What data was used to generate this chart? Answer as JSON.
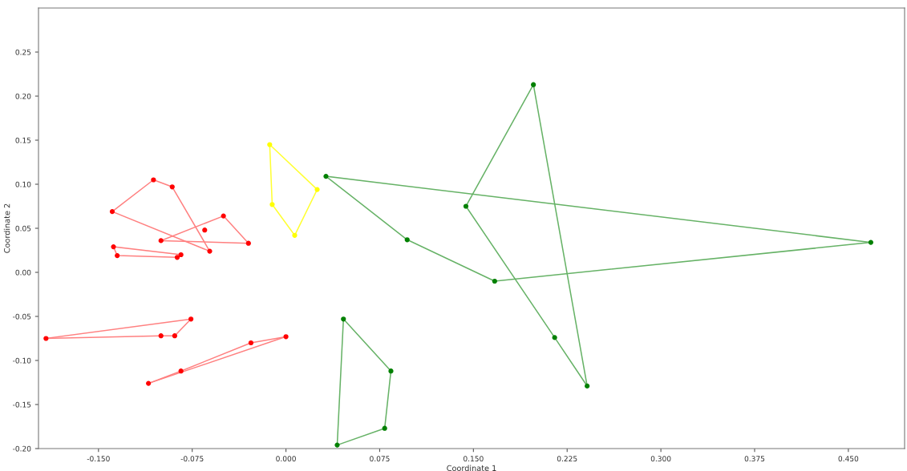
{
  "chart_data": {
    "type": "line",
    "xlabel": "Coordinate 1",
    "ylabel": "Coordinate 2",
    "line_style": "solid",
    "grid": false,
    "xlim": [
      -0.198,
      0.495
    ],
    "ylim": [
      -0.2,
      0.3
    ],
    "xticks": [
      {
        "value": -0.15,
        "label": "-0.150"
      },
      {
        "value": -0.075,
        "label": "-0.075"
      },
      {
        "value": 0,
        "label": "0.000"
      },
      {
        "value": 0.075,
        "label": "0.075"
      },
      {
        "value": 0.15,
        "label": "0.150"
      },
      {
        "value": 0.225,
        "label": "0.225"
      },
      {
        "value": 0.3,
        "label": "0.300"
      },
      {
        "value": 0.375,
        "label": "0.375"
      },
      {
        "value": 0.45,
        "label": "0.450"
      }
    ],
    "yticks": [
      {
        "value": -0.2,
        "label": "-0.20"
      },
      {
        "value": -0.15,
        "label": "-0.15"
      },
      {
        "value": -0.1,
        "label": "-0.10"
      },
      {
        "value": -0.05,
        "label": "-0.05"
      },
      {
        "value": 0,
        "label": "0.00"
      },
      {
        "value": 0.05,
        "label": "0.05"
      },
      {
        "value": 0.1,
        "label": "0.10"
      },
      {
        "value": 0.15,
        "label": "0.15"
      },
      {
        "value": 0.2,
        "label": "0.20"
      },
      {
        "value": 0.25,
        "label": "0.25"
      }
    ],
    "series": [
      {
        "color": "#ff8080",
        "x": [
          -0.139,
          -0.106,
          -0.091,
          -0.061
        ],
        "values": [
          0.069,
          0.105,
          0.097,
          0.024
        ]
      },
      {
        "color": "#ff8080",
        "x": [
          -0.139,
          -0.061
        ],
        "values": [
          0.069,
          0.024
        ]
      },
      {
        "color": "#ff8080",
        "x": [
          -0.1,
          -0.05,
          -0.03
        ],
        "values": [
          0.036,
          0.064,
          0.033
        ]
      },
      {
        "color": "#ff8080",
        "x": [
          -0.1,
          -0.03
        ],
        "values": [
          0.036,
          0.033
        ]
      },
      {
        "color": "#ff8080",
        "x": [
          -0.138,
          -0.084
        ],
        "values": [
          0.029,
          0.02
        ]
      },
      {
        "color": "#ff8080",
        "x": [
          -0.138,
          -0.135,
          -0.087,
          -0.084
        ],
        "values": [
          0.029,
          0.019,
          0.017,
          0.02
        ]
      },
      {
        "color": "#ff8080",
        "x": [
          -0.192,
          -0.076
        ],
        "values": [
          -0.075,
          -0.053
        ]
      },
      {
        "color": "#ff8080",
        "x": [
          -0.192,
          -0.1,
          -0.089,
          -0.076
        ],
        "values": [
          -0.075,
          -0.072,
          -0.072,
          -0.053
        ]
      },
      {
        "color": "#ff8080",
        "x": [
          -0.11,
          -0.084,
          -0.028,
          0.0
        ],
        "values": [
          -0.126,
          -0.112,
          -0.08,
          -0.073
        ]
      },
      {
        "color": "#ff8080",
        "x": [
          -0.11,
          0.0
        ],
        "values": [
          -0.126,
          -0.073
        ]
      },
      {
        "color": "#ffff33",
        "x": [
          -0.013,
          0.025
        ],
        "values": [
          0.145,
          0.094
        ]
      },
      {
        "color": "#ffff33",
        "x": [
          -0.013,
          -0.011,
          0.007,
          0.025
        ],
        "values": [
          0.145,
          0.077,
          0.042,
          0.094
        ]
      },
      {
        "color": "#66b266",
        "x": [
          0.041,
          0.046,
          0.084
        ],
        "values": [
          -0.196,
          -0.053,
          -0.112
        ]
      },
      {
        "color": "#66b266",
        "x": [
          0.041,
          0.079,
          0.084
        ],
        "values": [
          -0.196,
          -0.177,
          -0.112
        ]
      },
      {
        "color": "#66b266",
        "x": [
          0.032,
          0.097,
          0.167,
          0.468
        ],
        "values": [
          0.109,
          0.037,
          -0.01,
          0.034
        ]
      },
      {
        "color": "#66b266",
        "x": [
          0.032,
          0.468
        ],
        "values": [
          0.109,
          0.034
        ]
      },
      {
        "color": "#66b266",
        "x": [
          0.144,
          0.198,
          0.241
        ],
        "values": [
          0.075,
          0.213,
          -0.129
        ]
      },
      {
        "color": "#66b266",
        "x": [
          0.144,
          0.215,
          0.241
        ],
        "values": [
          0.075,
          -0.074,
          -0.129
        ]
      },
      {
        "type": "scatter",
        "marker": "circle",
        "color": "#ff0000",
        "x": [
          -0.139,
          -0.106,
          -0.091,
          -0.061,
          -0.1,
          -0.05,
          -0.03,
          -0.065,
          -0.138,
          -0.084,
          -0.087,
          -0.135,
          -0.192,
          -0.076,
          -0.089,
          -0.1,
          -0.11,
          -0.084,
          -0.028,
          0.0
        ],
        "values": [
          0.069,
          0.105,
          0.097,
          0.024,
          0.036,
          0.064,
          0.033,
          0.048,
          0.029,
          0.02,
          0.017,
          0.019,
          -0.075,
          -0.053,
          -0.072,
          -0.072,
          -0.126,
          -0.112,
          -0.08,
          -0.073
        ]
      },
      {
        "type": "scatter",
        "marker": "circle",
        "color": "#ffff00",
        "x": [
          -0.013,
          0.025,
          0.007,
          -0.011
        ],
        "values": [
          0.145,
          0.094,
          0.042,
          0.077
        ]
      },
      {
        "type": "scatter",
        "marker": "circle",
        "color": "#008000",
        "x": [
          0.046,
          0.084,
          0.079,
          0.041,
          0.032,
          0.097,
          0.167,
          0.468,
          0.198,
          0.144,
          0.215,
          0.241
        ],
        "values": [
          -0.053,
          -0.112,
          -0.177,
          -0.196,
          0.109,
          0.037,
          -0.01,
          0.034,
          0.213,
          0.075,
          -0.074,
          -0.129
        ]
      }
    ]
  }
}
